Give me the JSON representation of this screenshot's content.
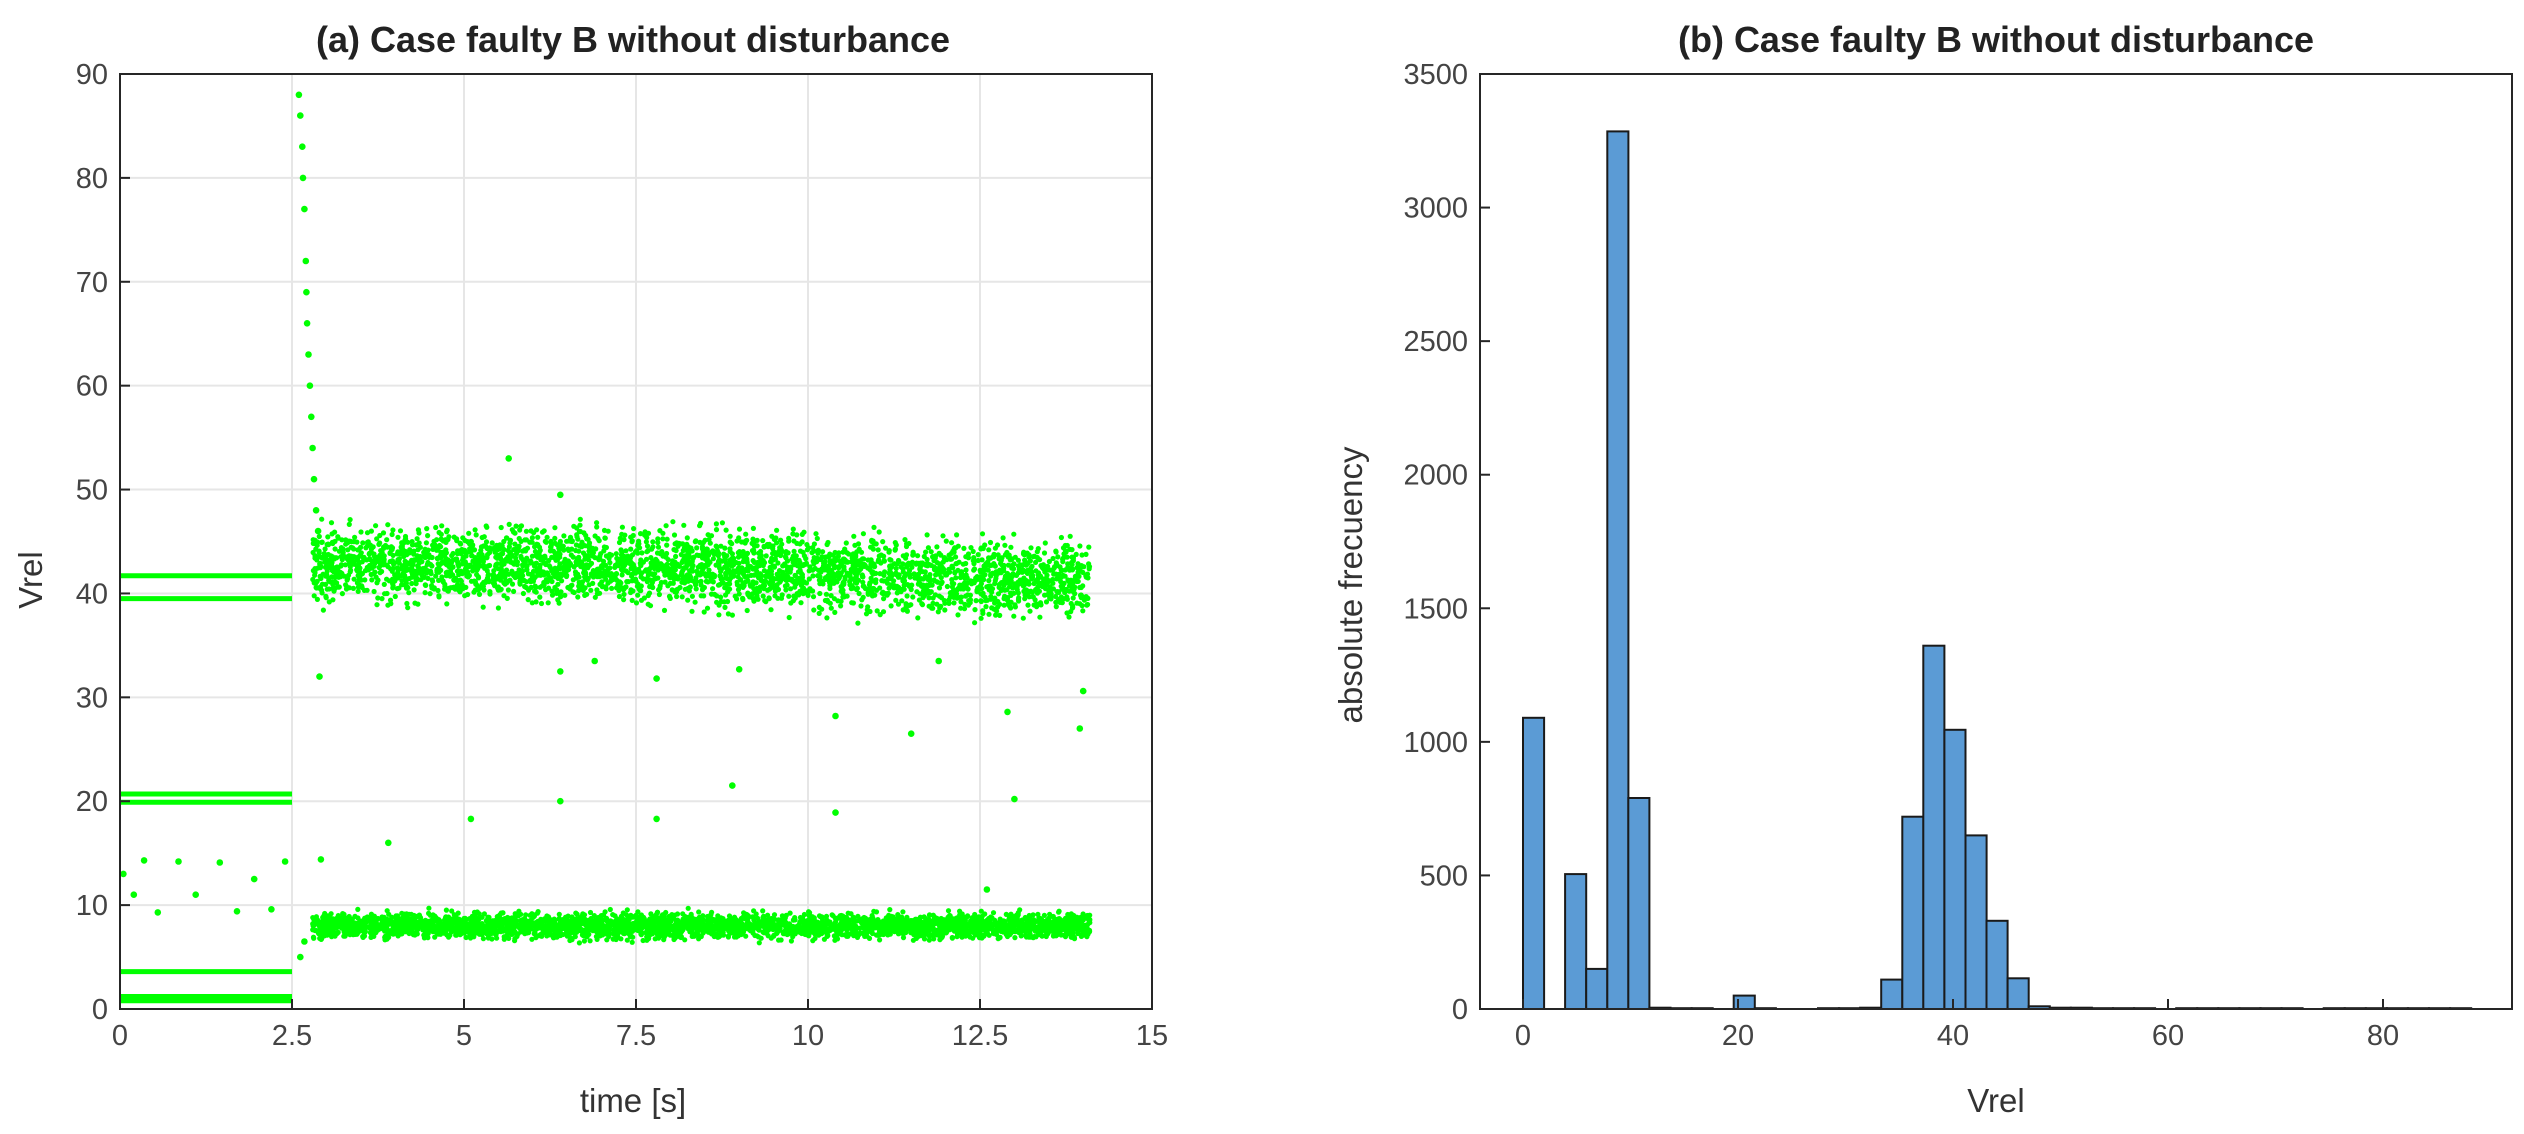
{
  "chart_data": [
    {
      "type": "scatter",
      "title": "(a) Case faulty B without disturbance",
      "xlabel": "time [s]",
      "ylabel": "Vrel",
      "xlim": [
        0,
        15
      ],
      "ylim": [
        0,
        90
      ],
      "xticks": [
        0,
        2.5,
        5,
        7.5,
        10,
        12.5,
        15
      ],
      "xtick_labels": [
        "0",
        "2.5",
        "5",
        "7.5",
        "10",
        "12.5",
        "15"
      ],
      "yticks": [
        0,
        10,
        20,
        30,
        40,
        50,
        60,
        70,
        80,
        90
      ],
      "ytick_labels": [
        "0",
        "10",
        "20",
        "30",
        "40",
        "50",
        "60",
        "70",
        "80",
        "90"
      ],
      "grid": true,
      "marker_color": "#00ff00",
      "bands": [
        {
          "x_range": [
            0,
            2.5
          ],
          "y": 41.7
        },
        {
          "x_range": [
            0,
            2.5
          ],
          "y": 39.5
        },
        {
          "x_range": [
            0,
            2.5
          ],
          "y": 20.7
        },
        {
          "x_range": [
            0,
            2.5
          ],
          "y": 19.9
        },
        {
          "x_range": [
            0,
            2.5
          ],
          "y": 3.6
        },
        {
          "x_range": [
            0,
            2.5
          ],
          "y": 1.2
        },
        {
          "x_range": [
            0,
            2.5
          ],
          "y": 0.8
        },
        {
          "x_range": [
            2.8,
            14.1
          ],
          "y_center": 41.5,
          "spread": 3.2
        },
        {
          "x_range": [
            2.8,
            14.1
          ],
          "y_center": 8,
          "spread": 1.1
        }
      ],
      "points": [
        [
          0.05,
          13
        ],
        [
          0.2,
          11
        ],
        [
          0.35,
          14.3
        ],
        [
          0.55,
          9.3
        ],
        [
          0.85,
          14.2
        ],
        [
          1.1,
          11
        ],
        [
          1.45,
          14.1
        ],
        [
          1.7,
          9.4
        ],
        [
          1.95,
          12.5
        ],
        [
          2.2,
          9.6
        ],
        [
          2.4,
          14.2
        ],
        [
          2.6,
          88
        ],
        [
          2.62,
          86
        ],
        [
          2.65,
          83
        ],
        [
          2.66,
          80
        ],
        [
          2.68,
          77
        ],
        [
          2.7,
          72
        ],
        [
          2.71,
          69
        ],
        [
          2.72,
          66
        ],
        [
          2.74,
          63
        ],
        [
          2.76,
          60
        ],
        [
          2.78,
          57
        ],
        [
          2.8,
          54
        ],
        [
          2.82,
          51
        ],
        [
          2.85,
          48
        ],
        [
          2.88,
          46
        ],
        [
          2.62,
          5
        ],
        [
          2.68,
          6.5
        ],
        [
          2.9,
          32
        ],
        [
          2.92,
          14.4
        ],
        [
          3.9,
          16
        ],
        [
          5.1,
          18.3
        ],
        [
          5.65,
          53
        ],
        [
          6.4,
          20
        ],
        [
          6.4,
          32.5
        ],
        [
          6.4,
          49.5
        ],
        [
          6.9,
          33.5
        ],
        [
          7.8,
          31.8
        ],
        [
          7.8,
          18.3
        ],
        [
          8.9,
          21.5
        ],
        [
          9.0,
          32.7
        ],
        [
          10.4,
          28.2
        ],
        [
          10.4,
          18.9
        ],
        [
          11.5,
          26.5
        ],
        [
          11.9,
          33.5
        ],
        [
          12.6,
          11.5
        ],
        [
          12.9,
          28.6
        ],
        [
          13,
          20.2
        ],
        [
          14.0,
          30.6
        ],
        [
          13.95,
          27
        ]
      ]
    },
    {
      "type": "bar",
      "title": "(b) Case faulty B without disturbance",
      "xlabel": "Vrel",
      "ylabel": "absolute frecuency",
      "xlim": [
        -4,
        92
      ],
      "ylim": [
        0,
        3500
      ],
      "xticks": [
        0,
        20,
        40,
        60,
        80
      ],
      "xtick_labels": [
        "0",
        "20",
        "40",
        "60",
        "80"
      ],
      "yticks": [
        0,
        500,
        1000,
        1500,
        2000,
        2500,
        3000,
        3500
      ],
      "ytick_labels": [
        "0",
        "500",
        "1000",
        "1500",
        "2000",
        "2500",
        "3000",
        "3500"
      ],
      "grid": false,
      "bar_color": "#5b9bd5",
      "bin_width": 1.96,
      "bin_start": 0,
      "values": [
        1090,
        0,
        505,
        150,
        3285,
        790,
        5,
        3,
        3,
        0,
        50,
        3,
        0,
        0,
        3,
        3,
        5,
        110,
        720,
        1360,
        1045,
        650,
        330,
        115,
        10,
        5,
        5,
        3,
        3,
        3,
        0,
        3,
        3,
        3,
        3,
        3,
        3,
        0,
        3,
        3,
        3,
        3,
        3,
        3,
        3
      ]
    }
  ]
}
